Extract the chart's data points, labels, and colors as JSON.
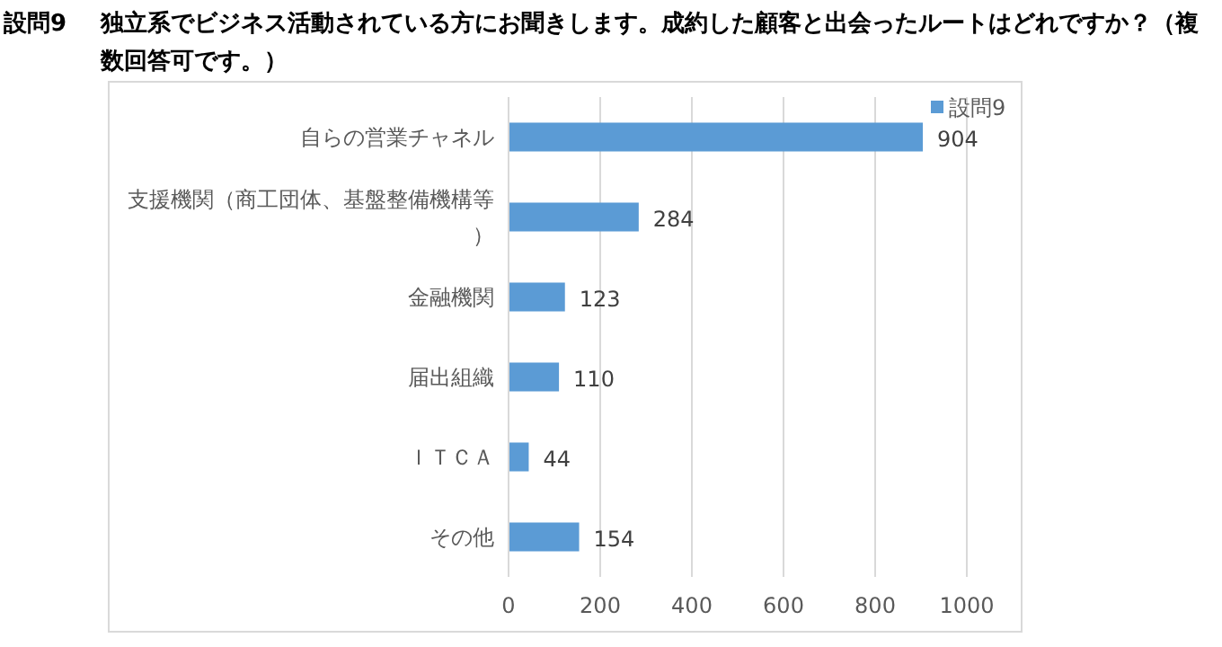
{
  "chart_data": {
    "type": "bar",
    "orientation": "horizontal",
    "title": "設問9　独立系でビジネス活動されている方にお聞きします。成約した顧客と出会ったルートはどれですか？（複数回答可です。）",
    "categories": [
      "自らの営業チャネル",
      "支援機関（商工団体、基盤整備機構等）",
      "金融機関",
      "届出組織",
      "ＩＴＣＡ",
      "その他"
    ],
    "series": [
      {
        "name": "設問9",
        "color": "#5b9bd5",
        "values": [
          904,
          284,
          123,
          110,
          44,
          154
        ]
      }
    ],
    "xlim": [
      0,
      1000
    ],
    "xticks": [
      0,
      200,
      400,
      600,
      800,
      1000
    ],
    "grid": "x",
    "legend": "top right",
    "data_labels": true
  }
}
